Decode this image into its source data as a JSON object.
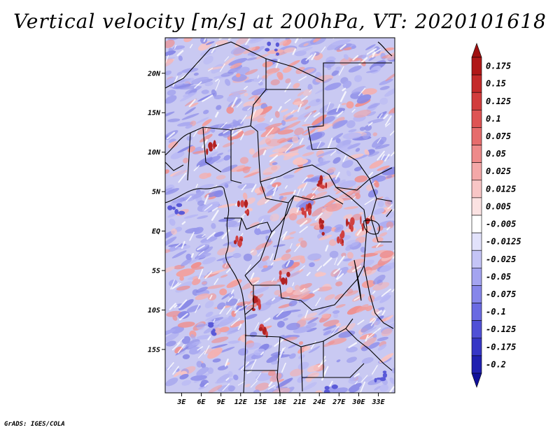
{
  "title": "Vertical velocity [m/s] at 200hPa, VT: 2020101618",
  "footer": "GrADS: IGES/COLA",
  "map": {
    "lat_labels": [
      {
        "label": "20N",
        "lat": 20
      },
      {
        "label": "15N",
        "lat": 15
      },
      {
        "label": "10N",
        "lat": 10
      },
      {
        "label": "5N",
        "lat": 5
      },
      {
        "label": "EQ",
        "lat": 0
      },
      {
        "label": "5S",
        "lat": -5
      },
      {
        "label": "10S",
        "lat": -10
      },
      {
        "label": "15S",
        "lat": -15
      }
    ],
    "lon_labels": [
      {
        "label": "3E",
        "lon": 3
      },
      {
        "label": "6E",
        "lon": 6
      },
      {
        "label": "9E",
        "lon": 9
      },
      {
        "label": "12E",
        "lon": 12
      },
      {
        "label": "15E",
        "lon": 15
      },
      {
        "label": "18E",
        "lon": 18
      },
      {
        "label": "21E",
        "lon": 21
      },
      {
        "label": "24E",
        "lon": 24
      },
      {
        "label": "27E",
        "lon": 27
      },
      {
        "label": "30E",
        "lon": 30
      },
      {
        "label": "33E",
        "lon": 33
      }
    ],
    "lon_range": [
      0.5,
      35.5
    ],
    "lat_range": [
      -20.5,
      24.5
    ]
  },
  "colorbar": {
    "levels": [
      {
        "label": "0.175",
        "color": "#b01818"
      },
      {
        "label": "0.15",
        "color": "#c42a2a"
      },
      {
        "label": "0.125",
        "color": "#d23c3c"
      },
      {
        "label": "0.1",
        "color": "#de5454"
      },
      {
        "label": "0.075",
        "color": "#e66c6c"
      },
      {
        "label": "0.05",
        "color": "#ee8a8a"
      },
      {
        "label": "0.025",
        "color": "#f4a8a8"
      },
      {
        "label": "0.0125",
        "color": "#f8c6c6"
      },
      {
        "label": "0.005",
        "color": "#fbe2e2"
      },
      {
        "label": "-0.005",
        "color": "#ffffff"
      },
      {
        "label": "-0.0125",
        "color": "#e2e2fb"
      },
      {
        "label": "-0.025",
        "color": "#c4c4f6"
      },
      {
        "label": "-0.05",
        "color": "#a4a4f0"
      },
      {
        "label": "-0.075",
        "color": "#8686ea"
      },
      {
        "label": "-0.1",
        "color": "#6a6ae2"
      },
      {
        "label": "-0.125",
        "color": "#5050d6"
      },
      {
        "label": "-0.175",
        "color": "#3636c6"
      },
      {
        "label": "-0.2",
        "color": "#2020b0"
      }
    ],
    "top_color": "#a01010",
    "bottom_color": "#10109a"
  }
}
